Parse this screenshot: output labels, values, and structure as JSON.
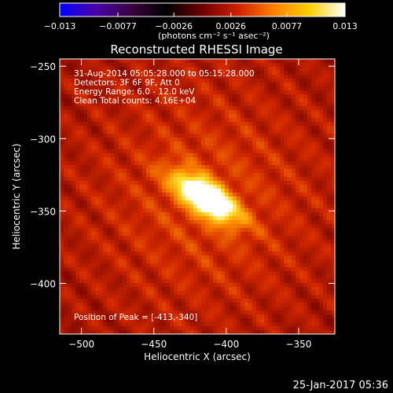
{
  "chart_data": {
    "type": "heatmap",
    "title": "Reconstructed RHESSI Image",
    "xlabel": "Heliocentric X (arcsec)",
    "ylabel": "Heliocentric Y (arcsec)",
    "xlim": [
      -515,
      -325
    ],
    "ylim": [
      -435,
      -245
    ],
    "xticks": [
      -500,
      -450,
      -400,
      -350
    ],
    "yticks": [
      -250,
      -300,
      -350,
      -400
    ],
    "xtick_labels": [
      "−500",
      "−450",
      "−400",
      "−350"
    ],
    "ytick_labels": [
      "−250",
      "−300",
      "−350",
      "−400"
    ],
    "annotations": [
      "31-Aug-2014 05:05:28.000 to 05:15:28.000",
      "Detectors: 3F 6F 9F, Att 0",
      "Energy Range: 6.0 - 12.0 keV",
      "Clean     Total counts: 4.16E+04"
    ],
    "peak_label": "Position of Peak = [-413,-340]",
    "peak": {
      "x": -413,
      "y": -340
    },
    "source": {
      "x": -414,
      "y": -341,
      "angle_deg": -35,
      "sigma_major_arcsec": 18,
      "sigma_minor_arcsec": 7
    },
    "colorbar": {
      "min": -0.013,
      "max": 0.013,
      "tick_labels": [
        "−0.013",
        "−0.0077",
        "−0.0026",
        "0.0026",
        "0.0077",
        "0.013"
      ],
      "units_label": "(photons cm⁻² s⁻¹ asec⁻²)",
      "colormap_stops": [
        "#0000ff",
        "#4b00aa",
        "#3a0040",
        "#000000",
        "#700000",
        "#d02000",
        "#ff8000",
        "#ffd000",
        "#ffffff"
      ]
    },
    "grid": false,
    "legend": "none"
  },
  "footer": {
    "timestamp": "25-Jan-2017 05:36"
  }
}
